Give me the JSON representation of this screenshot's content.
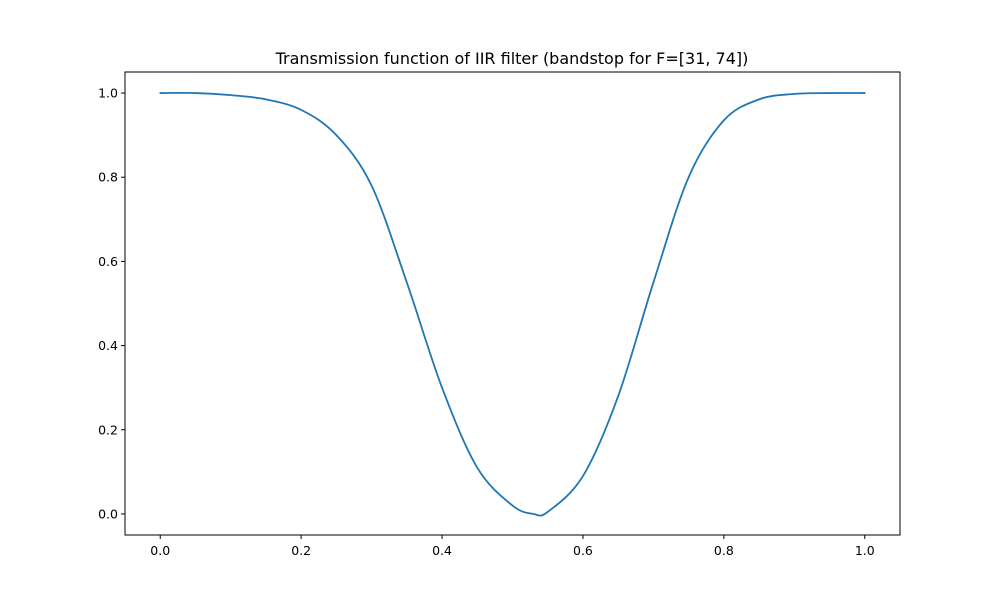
{
  "chart_data": {
    "type": "line",
    "title": "Transmission function of IIR filter (bandstop for F=[31, 74])",
    "xlabel": "",
    "ylabel": "",
    "xlim": [
      -0.05,
      1.05
    ],
    "ylim": [
      -0.05,
      1.05
    ],
    "xticks": [
      0.0,
      0.2,
      0.4,
      0.6,
      0.8,
      1.0
    ],
    "xtick_labels": [
      "0.0",
      "0.2",
      "0.4",
      "0.6",
      "0.8",
      "1.0"
    ],
    "yticks": [
      0.0,
      0.2,
      0.4,
      0.6,
      0.8,
      1.0
    ],
    "ytick_labels": [
      "0.0",
      "0.2",
      "0.4",
      "0.6",
      "0.8",
      "1.0"
    ],
    "grid": false,
    "legend": "none",
    "series": [
      {
        "color": "#1f77b4",
        "x": [
          0.0,
          0.05,
          0.1,
          0.15,
          0.2,
          0.25,
          0.3,
          0.35,
          0.4,
          0.45,
          0.5,
          0.53,
          0.55,
          0.6,
          0.65,
          0.7,
          0.75,
          0.8,
          0.85,
          0.9,
          0.95,
          1.0
        ],
        "y": [
          1.0,
          1.0,
          0.995,
          0.985,
          0.96,
          0.9,
          0.78,
          0.55,
          0.3,
          0.11,
          0.02,
          0.0,
          0.005,
          0.09,
          0.28,
          0.55,
          0.8,
          0.935,
          0.985,
          0.998,
          1.0,
          1.0
        ]
      }
    ]
  }
}
